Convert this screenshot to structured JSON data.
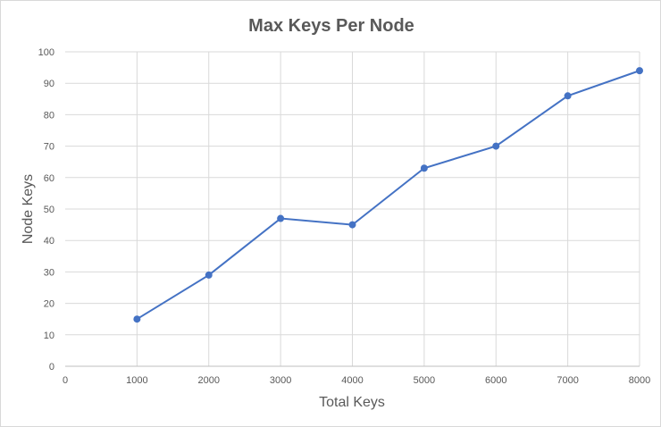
{
  "chart_data": {
    "type": "line",
    "title": "Max Keys Per Node",
    "xlabel": "Total Keys",
    "ylabel": "Node Keys",
    "x": [
      1000,
      2000,
      3000,
      4000,
      5000,
      6000,
      7000,
      8000
    ],
    "series": [
      {
        "values": [
          15,
          29,
          47,
          45,
          63,
          70,
          86,
          94
        ]
      }
    ],
    "xlim": [
      0,
      8000
    ],
    "ylim": [
      0,
      100
    ],
    "xticks": [
      0,
      1000,
      2000,
      3000,
      4000,
      5000,
      6000,
      7000,
      8000
    ],
    "yticks": [
      0,
      10,
      20,
      30,
      40,
      50,
      60,
      70,
      80,
      90,
      100
    ],
    "grid": true,
    "legend": "none",
    "colors": {
      "series": "#4472c4",
      "text": "#595959",
      "grid": "#d9d9d9"
    }
  }
}
